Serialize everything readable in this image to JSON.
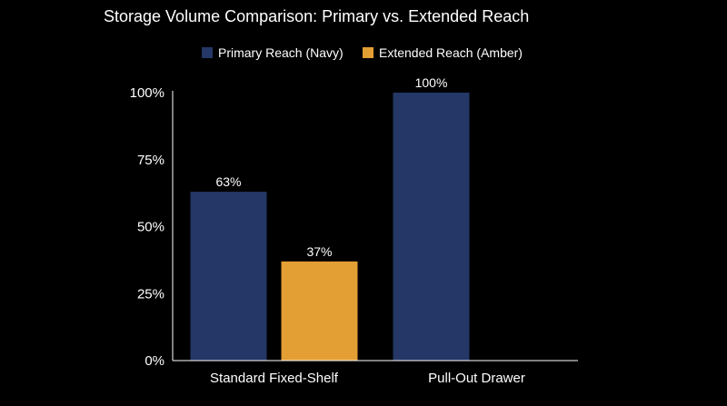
{
  "chart_data": {
    "type": "bar",
    "title": "Storage Volume Comparison: Primary vs. Extended Reach",
    "xlabel": "",
    "ylabel": "",
    "ylim": [
      0,
      100
    ],
    "yticks": [
      "0%",
      "25%",
      "50%",
      "75%",
      "100%"
    ],
    "ytick_values": [
      0,
      25,
      50,
      75,
      100
    ],
    "categories": [
      "Standard Fixed-Shelf",
      "Pull-Out Drawer"
    ],
    "series": [
      {
        "name": "Primary Reach (Navy)",
        "color": "#243766",
        "values": [
          63,
          100
        ],
        "labels": [
          "63%",
          "100%"
        ]
      },
      {
        "name": "Extended Reach (Amber)",
        "color": "#E39E34",
        "values": [
          37,
          null
        ],
        "labels": [
          "37%",
          ""
        ]
      }
    ],
    "legend_position": "top-center",
    "grid": false,
    "background": "#000000",
    "axis_color": "#ffffff"
  }
}
